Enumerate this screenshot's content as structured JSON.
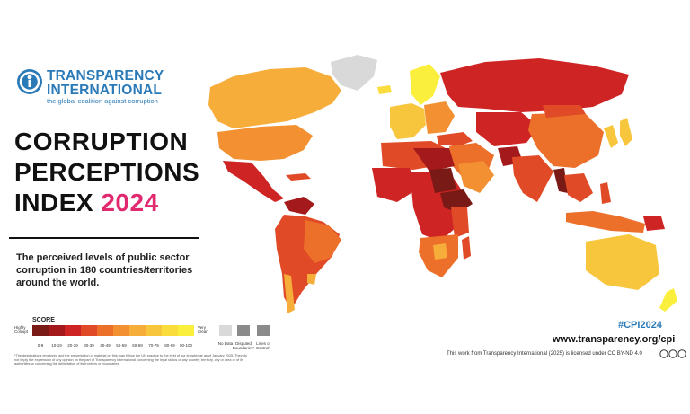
{
  "logo": {
    "name_line1": "TRANSPARENCY",
    "name_line2": "INTERNATIONAL",
    "tagline": "the global coalition against corruption",
    "brand_color": "#2a7ab8"
  },
  "title": {
    "line1": "CORRUPTION",
    "line2": "PERCEPTIONS",
    "line3_prefix": "INDEX ",
    "year": "2024",
    "year_color": "#e0296f"
  },
  "description": "The perceived levels of public sector corruption in 180 countries/territories around the world.",
  "legend": {
    "score_label": "SCORE",
    "low_label": "Highly Corrupt",
    "high_label": "Very Clean",
    "bins": [
      {
        "label": "0-9",
        "color": "#7a1a16"
      },
      {
        "label": "10-19",
        "color": "#a4191b"
      },
      {
        "label": "20-29",
        "color": "#cf2424"
      },
      {
        "label": "30-39",
        "color": "#e04a26"
      },
      {
        "label": "40-49",
        "color": "#ec6f2a"
      },
      {
        "label": "50-59",
        "color": "#f39132"
      },
      {
        "label": "60-69",
        "color": "#f6ad3a"
      },
      {
        "label": "70-79",
        "color": "#f8c63d"
      },
      {
        "label": "80-89",
        "color": "#fadc3c"
      },
      {
        "label": "90-100",
        "color": "#fbef3e"
      }
    ],
    "extras": [
      {
        "label": "No Data",
        "color": "#d9d9d9"
      },
      {
        "label": "Disputed Boundaries*",
        "color": "#8a8a8a"
      },
      {
        "label": "Lines of Control*",
        "color": "#8a8a8a"
      }
    ]
  },
  "footnote": "*The designations employed and the presentation of material on this map follow the UN practice to the best of our knowledge as of January 2025. They do not imply the expression of any opinion on the part of Transparency International concerning the legal status of any country, territory, city or area or of its authorities or concerning the delimitation of its frontiers or boundaries.",
  "hashtag": "#CPI2024",
  "website": "www.transparency.org/cpi",
  "license": "This work from Transparency International (2025) is licensed under CC BY-ND 4.0"
}
